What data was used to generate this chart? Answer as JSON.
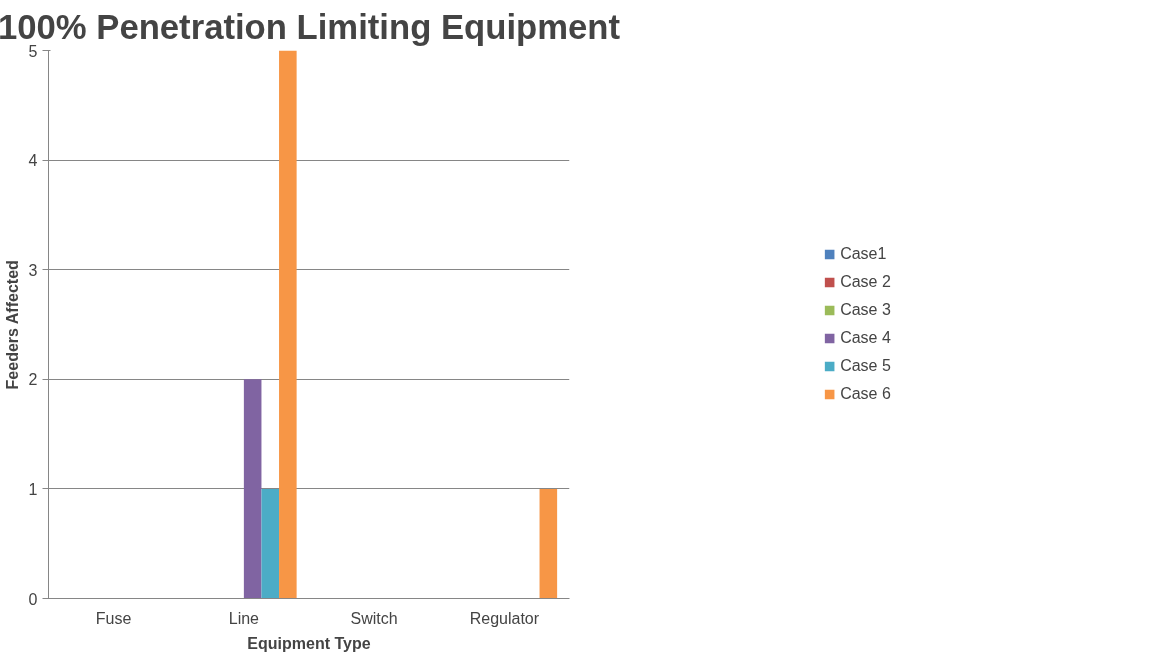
{
  "chart_data": {
    "type": "bar",
    "title": "100% Penetration Limiting Equipment",
    "xlabel": "Equipment Type",
    "ylabel": "Feeders Affected",
    "categories": [
      "Fuse",
      "Line",
      "Switch",
      "Regulator"
    ],
    "series": [
      {
        "name": "Case1",
        "color": "#4f81bd",
        "values": [
          0,
          0,
          0,
          0
        ]
      },
      {
        "name": "Case 2",
        "color": "#c0504d",
        "values": [
          0,
          0,
          0,
          0
        ]
      },
      {
        "name": "Case 3",
        "color": "#9bbb59",
        "values": [
          0,
          0,
          0,
          0
        ]
      },
      {
        "name": "Case 4",
        "color": "#8064a2",
        "values": [
          0,
          2,
          0,
          0
        ]
      },
      {
        "name": "Case 5",
        "color": "#4bacc6",
        "values": [
          0,
          1,
          0,
          0
        ]
      },
      {
        "name": "Case 6",
        "color": "#f79646",
        "values": [
          0,
          5,
          0,
          1
        ]
      }
    ],
    "ylim": [
      0,
      5
    ],
    "yticks": [
      0,
      1,
      2,
      3,
      4,
      5
    ],
    "grid": "y",
    "legend": "right"
  }
}
